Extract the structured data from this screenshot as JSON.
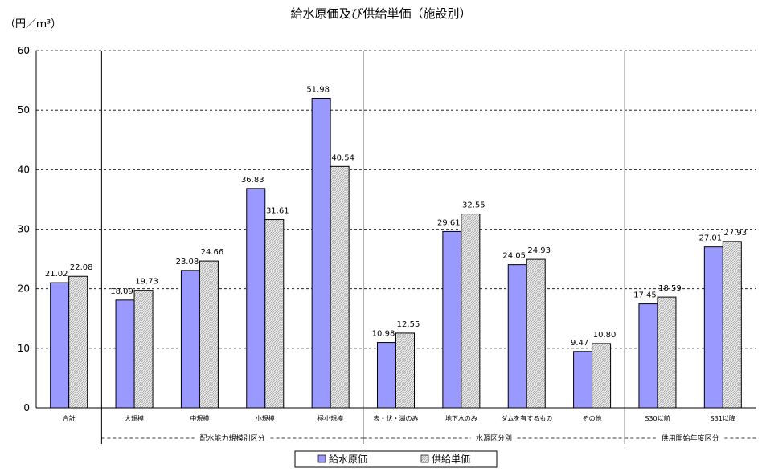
{
  "chart_data": {
    "type": "bar",
    "title": "給水原価及び供給単価（施設別）",
    "ylabel": "（円／ｍ³）",
    "ylim": [
      0,
      60
    ],
    "yticks": [
      0,
      10,
      20,
      30,
      40,
      50,
      60
    ],
    "grid": true,
    "legend_position": "bottom",
    "categories": [
      "合計",
      "大規模",
      "中規模",
      "小規模",
      "極小規模",
      "表・伏・湖のみ",
      "地下水のみ",
      "ダムを有するもの",
      "その他",
      "S30以前",
      "S31以降"
    ],
    "series": [
      {
        "name": "給水原価",
        "color": "#9999ff",
        "values": [
          21.02,
          18.09,
          23.08,
          36.83,
          51.98,
          10.98,
          29.61,
          24.05,
          9.47,
          17.45,
          27.01
        ]
      },
      {
        "name": "供給単価",
        "color": "#e0e0e0",
        "values": [
          22.08,
          19.73,
          24.66,
          31.61,
          40.54,
          12.55,
          32.55,
          24.93,
          10.8,
          18.59,
          27.93
        ]
      }
    ],
    "groups": [
      {
        "label": "配水能力規模別区分",
        "start": 1,
        "end": 4
      },
      {
        "label": "水源区分別",
        "start": 5,
        "end": 8
      },
      {
        "label": "供用開始年度区分",
        "start": 9,
        "end": 10
      }
    ]
  }
}
